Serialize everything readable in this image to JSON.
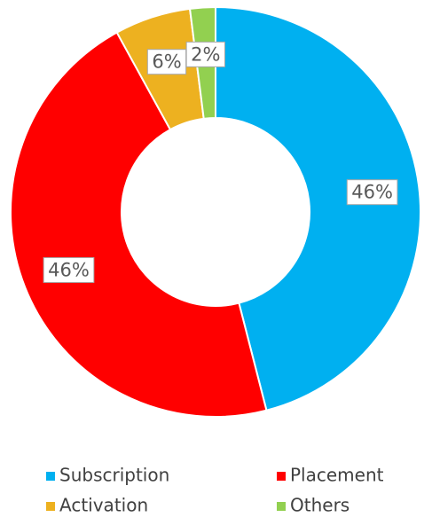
{
  "chart_data": {
    "type": "donut",
    "categories": [
      "Subscription",
      "Placement",
      "Activation",
      "Others"
    ],
    "values": [
      46,
      46,
      6,
      2
    ],
    "value_labels": [
      "46%",
      "46%",
      "6%",
      "2%"
    ],
    "colors": [
      "#00b0f0",
      "#ff0000",
      "#edb120",
      "#92d050"
    ],
    "legend": "bottom"
  }
}
